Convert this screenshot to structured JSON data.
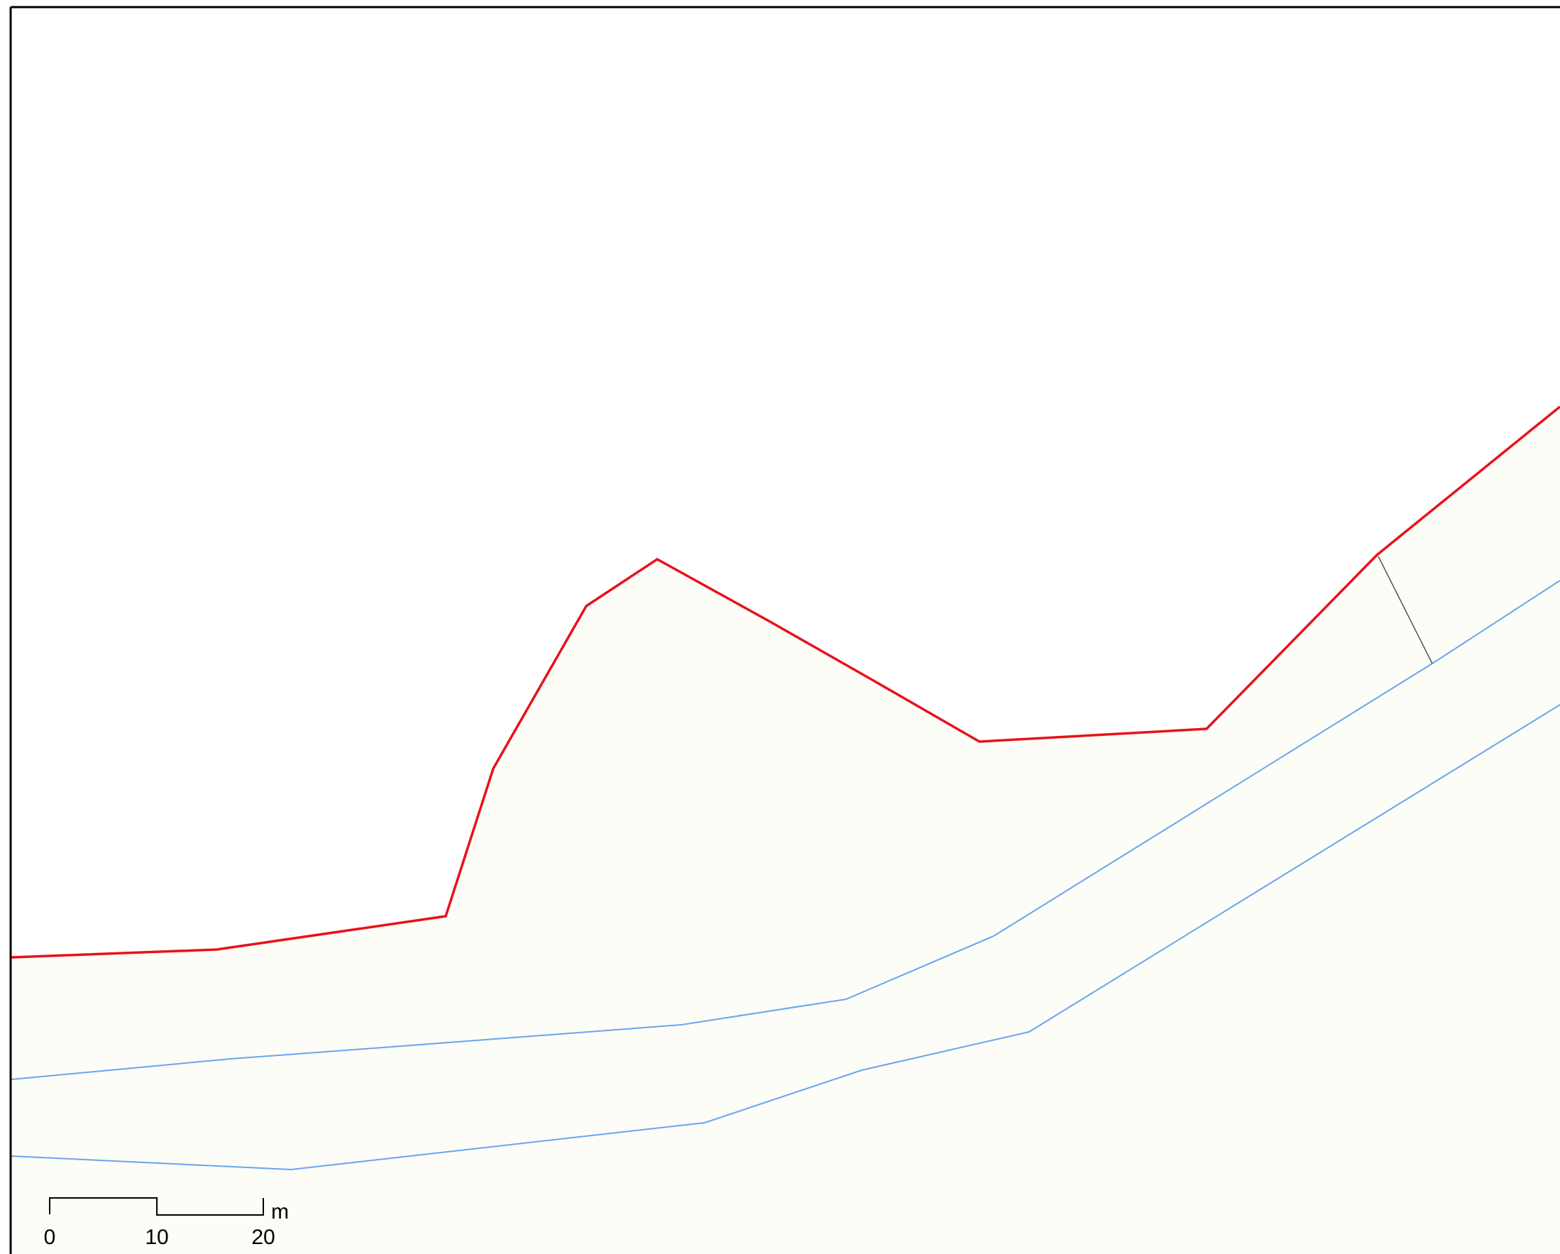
{
  "map": {
    "colors": {
      "background": "#ffffff",
      "land_fill": "#fcfdf7",
      "boundary_line": "#e8121a",
      "contour_line": "#6aa5ee",
      "division_line": "#555555",
      "frame": "#000000"
    },
    "features": {
      "boundary": "red-boundary-line",
      "contours": [
        "contour-line-upper",
        "contour-line-lower"
      ],
      "division": "parcel-division-line"
    },
    "scale_bar": {
      "unit": "m",
      "labels": [
        "0",
        "10",
        "20"
      ]
    }
  }
}
